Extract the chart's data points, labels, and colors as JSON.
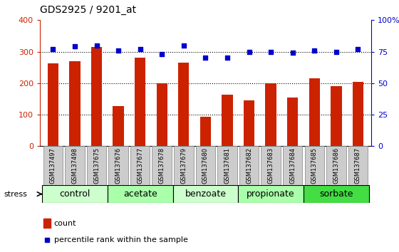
{
  "title": "GDS2925 / 9201_at",
  "samples": [
    "GSM137497",
    "GSM137498",
    "GSM137675",
    "GSM137676",
    "GSM137677",
    "GSM137678",
    "GSM137679",
    "GSM137680",
    "GSM137681",
    "GSM137682",
    "GSM137683",
    "GSM137684",
    "GSM137685",
    "GSM137686",
    "GSM137687"
  ],
  "counts": [
    262,
    270,
    315,
    127,
    280,
    200,
    265,
    93,
    163,
    146,
    200,
    155,
    215,
    190,
    205
  ],
  "percentiles": [
    77,
    79,
    80,
    76,
    77,
    73,
    80,
    70,
    70,
    75,
    75,
    74,
    76,
    75,
    77
  ],
  "groups": [
    {
      "label": "control",
      "start": 0,
      "end": 3,
      "color": "#ccffcc"
    },
    {
      "label": "acetate",
      "start": 3,
      "end": 6,
      "color": "#aaffaa"
    },
    {
      "label": "benzoate",
      "start": 6,
      "end": 9,
      "color": "#ccffcc"
    },
    {
      "label": "propionate",
      "start": 9,
      "end": 12,
      "color": "#aaffaa"
    },
    {
      "label": "sorbate",
      "start": 12,
      "end": 15,
      "color": "#44dd44"
    }
  ],
  "bar_color": "#cc2200",
  "dot_color": "#0000cc",
  "left_ylim": [
    0,
    400
  ],
  "right_ylim": [
    0,
    100
  ],
  "left_yticks": [
    0,
    100,
    200,
    300,
    400
  ],
  "right_yticks": [
    0,
    25,
    50,
    75,
    100
  ],
  "right_yticklabels": [
    "0",
    "25",
    "50",
    "75",
    "100%"
  ],
  "dotted_vals": [
    100,
    200,
    300
  ],
  "xticklabel_bg": "#cccccc",
  "stress_label": "stress",
  "legend_count_label": "count",
  "legend_pct_label": "percentile rank within the sample",
  "title_fontsize": 10,
  "axis_fontsize": 8,
  "group_fontsize": 9,
  "tick_fontsize": 6
}
